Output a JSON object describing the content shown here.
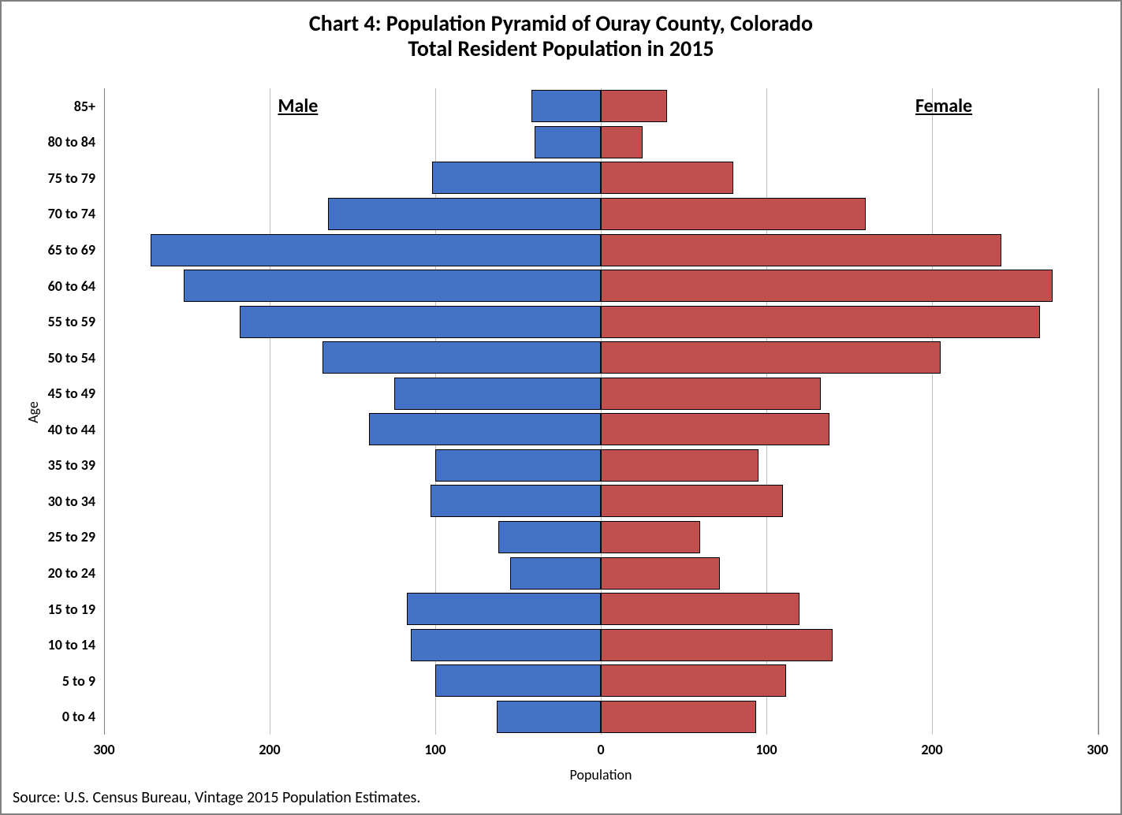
{
  "chart": {
    "type": "population-pyramid",
    "title_line1": "Chart 4: Population Pyramid of Ouray County, Colorado",
    "title_line2": "Total Resident Population in 2015",
    "title_fontsize": 28,
    "title_color": "#000000",
    "background_color": "#ffffff",
    "frame_border_color": "#808080",
    "grid_color": "#bfbfbf",
    "bar_border_color": "#000000",
    "plot_border_color": "#808080",
    "male_color": "#4472c4",
    "female_color": "#c0504d",
    "male_label": "Male",
    "female_label": "Female",
    "series_label_fontsize": 24,
    "x_label": "Population",
    "y_label": "Age",
    "axis_label_fontsize": 18,
    "tick_fontsize": 18,
    "tick_fontweight": 700,
    "x_min": -300,
    "x_max": 300,
    "x_ticks": [
      -300,
      -200,
      -100,
      0,
      100,
      200,
      300
    ],
    "x_tick_labels": [
      "300",
      "200",
      "100",
      "0",
      "100",
      "200",
      "300"
    ],
    "bar_row_height_ratio": 0.9,
    "age_groups": [
      {
        "label": "0 to 4",
        "male": 63,
        "female": 94
      },
      {
        "label": "5 to 9",
        "male": 100,
        "female": 112
      },
      {
        "label": "10 to 14",
        "male": 115,
        "female": 140
      },
      {
        "label": "15 to 19",
        "male": 117,
        "female": 120
      },
      {
        "label": "20 to 24",
        "male": 55,
        "female": 72
      },
      {
        "label": "25 to 29",
        "male": 62,
        "female": 60
      },
      {
        "label": "30 to 34",
        "male": 103,
        "female": 110
      },
      {
        "label": "35 to 39",
        "male": 100,
        "female": 95
      },
      {
        "label": "40 to 44",
        "male": 140,
        "female": 138
      },
      {
        "label": "45 to 49",
        "male": 125,
        "female": 133
      },
      {
        "label": "50 to 54",
        "male": 168,
        "female": 205
      },
      {
        "label": "55 to 59",
        "male": 218,
        "female": 265
      },
      {
        "label": "60 to 64",
        "male": 252,
        "female": 273
      },
      {
        "label": "65 to 69",
        "male": 272,
        "female": 242
      },
      {
        "label": "70 to 74",
        "male": 165,
        "female": 160
      },
      {
        "label": "75 to 79",
        "male": 102,
        "female": 80
      },
      {
        "label": "80 to 84",
        "male": 40,
        "female": 25
      },
      {
        "label": "85+",
        "male": 42,
        "female": 40
      }
    ]
  },
  "source_text": "Source: U.S. Census Bureau, Vintage 2015 Population Estimates.",
  "source_fontsize": 20
}
